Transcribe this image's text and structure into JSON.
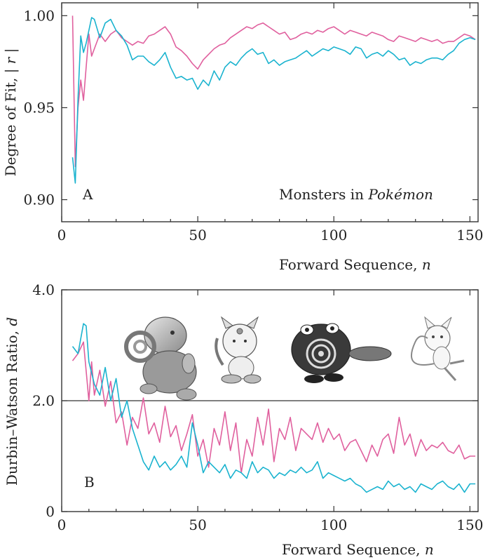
{
  "colors": {
    "series_pink": "#e0609e",
    "series_cyan": "#1ab3cf",
    "axis": "#333333"
  },
  "chart_data": [
    {
      "type": "line",
      "panel_label": "A",
      "annotation_prefix": "Monsters in ",
      "annotation_italic": "Pokémon",
      "xlabel_text": "Forward Sequence, ",
      "xlabel_var": "n",
      "ylabel_text": "Degree of Fit, ",
      "ylabel_var": "| r |",
      "xlim": [
        0,
        153
      ],
      "ylim": [
        0.888,
        1.007
      ],
      "xticks": [
        0,
        50,
        100,
        150
      ],
      "xtick_labels": [
        "0",
        "50",
        "100",
        "150"
      ],
      "yticks": [
        0.9,
        0.95,
        1.0
      ],
      "ytick_labels": [
        "0.90",
        "0.95",
        "1.00"
      ],
      "grid": false,
      "series": [
        {
          "color": "#e0609e",
          "x": [
            4,
            5,
            6,
            7,
            8,
            9,
            10,
            11,
            12,
            14,
            16,
            18,
            20,
            22,
            24,
            26,
            28,
            30,
            32,
            34,
            36,
            38,
            40,
            42,
            44,
            46,
            48,
            50,
            52,
            54,
            56,
            58,
            60,
            62,
            64,
            66,
            68,
            70,
            72,
            74,
            76,
            78,
            80,
            82,
            84,
            86,
            88,
            90,
            92,
            94,
            96,
            98,
            100,
            102,
            104,
            106,
            108,
            110,
            112,
            114,
            116,
            118,
            120,
            122,
            124,
            126,
            128,
            130,
            132,
            134,
            136,
            138,
            140,
            142,
            144,
            146,
            148,
            150,
            152
          ],
          "y": [
            1.0,
            0.918,
            0.95,
            0.965,
            0.954,
            0.972,
            0.99,
            0.978,
            0.982,
            0.99,
            0.986,
            0.99,
            0.992,
            0.988,
            0.986,
            0.984,
            0.986,
            0.985,
            0.989,
            0.99,
            0.992,
            0.994,
            0.99,
            0.983,
            0.981,
            0.978,
            0.974,
            0.971,
            0.976,
            0.979,
            0.982,
            0.984,
            0.985,
            0.988,
            0.99,
            0.992,
            0.994,
            0.993,
            0.995,
            0.996,
            0.994,
            0.992,
            0.99,
            0.991,
            0.987,
            0.988,
            0.99,
            0.991,
            0.99,
            0.992,
            0.991,
            0.993,
            0.994,
            0.992,
            0.99,
            0.992,
            0.991,
            0.99,
            0.989,
            0.991,
            0.99,
            0.989,
            0.987,
            0.986,
            0.989,
            0.988,
            0.987,
            0.986,
            0.988,
            0.987,
            0.986,
            0.987,
            0.985,
            0.986,
            0.986,
            0.988,
            0.99,
            0.989,
            0.987
          ]
        },
        {
          "color": "#1ab3cf",
          "x": [
            4,
            5,
            6,
            7,
            8,
            9,
            10,
            11,
            12,
            14,
            16,
            18,
            20,
            22,
            24,
            26,
            28,
            30,
            32,
            34,
            36,
            38,
            40,
            42,
            44,
            46,
            48,
            50,
            52,
            54,
            56,
            58,
            60,
            62,
            64,
            66,
            68,
            70,
            72,
            74,
            76,
            78,
            80,
            82,
            84,
            86,
            88,
            90,
            92,
            94,
            96,
            98,
            100,
            102,
            104,
            106,
            108,
            110,
            112,
            114,
            116,
            118,
            120,
            122,
            124,
            126,
            128,
            130,
            132,
            134,
            136,
            138,
            140,
            142,
            144,
            146,
            148,
            150,
            152
          ],
          "y": [
            0.923,
            0.909,
            0.955,
            0.989,
            0.98,
            0.985,
            0.992,
            0.999,
            0.998,
            0.988,
            0.996,
            0.998,
            0.992,
            0.989,
            0.984,
            0.976,
            0.978,
            0.978,
            0.975,
            0.973,
            0.976,
            0.98,
            0.972,
            0.966,
            0.967,
            0.965,
            0.966,
            0.96,
            0.965,
            0.962,
            0.97,
            0.965,
            0.972,
            0.975,
            0.973,
            0.977,
            0.98,
            0.982,
            0.979,
            0.98,
            0.974,
            0.976,
            0.973,
            0.975,
            0.976,
            0.977,
            0.979,
            0.981,
            0.978,
            0.98,
            0.982,
            0.981,
            0.983,
            0.982,
            0.981,
            0.979,
            0.983,
            0.982,
            0.977,
            0.979,
            0.98,
            0.978,
            0.981,
            0.979,
            0.976,
            0.977,
            0.973,
            0.975,
            0.974,
            0.976,
            0.977,
            0.977,
            0.976,
            0.979,
            0.981,
            0.985,
            0.987,
            0.988,
            0.987
          ]
        }
      ]
    },
    {
      "type": "line",
      "panel_label": "B",
      "xlabel_text": "Forward Sequence, ",
      "xlabel_var": "n",
      "ylabel_text": "Durbin–Watson Ratio, ",
      "ylabel_var": "d",
      "xlim": [
        0,
        153
      ],
      "ylim": [
        0,
        4.0
      ],
      "xticks": [
        0,
        50,
        100,
        150
      ],
      "xtick_labels": [
        "0",
        "50",
        "100",
        "150"
      ],
      "yticks": [
        0,
        2.0,
        4.0
      ],
      "ytick_labels": [
        "0",
        "2.0",
        "4.0"
      ],
      "reference_line_y": 2.0,
      "grid": false,
      "images": [
        "squirtle-illustration",
        "meowth-illustration",
        "poliwag-illustration",
        "mew-illustration"
      ],
      "series": [
        {
          "color": "#e0609e",
          "x": [
            4,
            6,
            8,
            10,
            11,
            12,
            14,
            16,
            18,
            20,
            22,
            24,
            26,
            28,
            30,
            32,
            34,
            36,
            38,
            40,
            42,
            44,
            46,
            48,
            50,
            52,
            54,
            56,
            58,
            60,
            62,
            64,
            66,
            68,
            70,
            72,
            74,
            76,
            78,
            80,
            82,
            84,
            86,
            88,
            90,
            92,
            94,
            96,
            98,
            100,
            102,
            104,
            106,
            108,
            110,
            112,
            114,
            116,
            118,
            120,
            122,
            124,
            126,
            128,
            130,
            132,
            134,
            136,
            138,
            140,
            142,
            144,
            146,
            148,
            150,
            152
          ],
          "y": [
            2.72,
            2.85,
            3.06,
            2.0,
            2.7,
            2.1,
            2.55,
            1.9,
            2.35,
            1.6,
            1.8,
            1.2,
            1.7,
            1.5,
            2.05,
            1.4,
            1.6,
            1.25,
            1.9,
            1.35,
            1.55,
            1.1,
            1.4,
            1.75,
            1.0,
            1.3,
            0.8,
            1.5,
            1.2,
            1.8,
            1.1,
            1.6,
            0.7,
            1.3,
            1.0,
            1.7,
            1.2,
            1.85,
            0.9,
            1.5,
            1.3,
            1.7,
            1.1,
            1.5,
            1.4,
            1.3,
            1.6,
            1.25,
            1.5,
            1.3,
            1.4,
            1.1,
            1.25,
            1.3,
            1.1,
            0.9,
            1.2,
            1.0,
            1.3,
            1.4,
            1.05,
            1.7,
            1.2,
            1.4,
            1.0,
            1.3,
            1.1,
            1.2,
            1.15,
            1.25,
            1.1,
            1.05,
            1.2,
            0.95,
            1.0,
            1.0
          ]
        },
        {
          "color": "#1ab3cf",
          "x": [
            4,
            6,
            8,
            9,
            10,
            11,
            12,
            14,
            16,
            18,
            20,
            22,
            24,
            26,
            28,
            30,
            32,
            34,
            36,
            38,
            40,
            42,
            44,
            46,
            48,
            50,
            52,
            54,
            56,
            58,
            60,
            62,
            64,
            66,
            68,
            70,
            72,
            74,
            76,
            78,
            80,
            82,
            84,
            86,
            88,
            90,
            92,
            94,
            96,
            98,
            100,
            102,
            104,
            106,
            108,
            110,
            112,
            114,
            116,
            118,
            120,
            122,
            124,
            126,
            128,
            130,
            132,
            134,
            136,
            138,
            140,
            142,
            144,
            146,
            148,
            150,
            152
          ],
          "y": [
            2.98,
            2.85,
            3.39,
            3.35,
            2.7,
            2.5,
            2.3,
            2.1,
            2.6,
            2.0,
            2.4,
            1.7,
            2.0,
            1.5,
            1.2,
            0.9,
            0.75,
            1.0,
            0.8,
            0.9,
            0.75,
            0.85,
            1.0,
            0.8,
            1.6,
            1.2,
            0.7,
            0.9,
            0.8,
            0.7,
            0.85,
            0.6,
            0.75,
            0.7,
            0.6,
            0.9,
            0.7,
            0.8,
            0.75,
            0.6,
            0.7,
            0.65,
            0.75,
            0.7,
            0.8,
            0.7,
            0.75,
            0.9,
            0.6,
            0.7,
            0.65,
            0.6,
            0.55,
            0.6,
            0.5,
            0.45,
            0.35,
            0.4,
            0.45,
            0.4,
            0.55,
            0.45,
            0.5,
            0.4,
            0.45,
            0.35,
            0.5,
            0.45,
            0.4,
            0.5,
            0.55,
            0.45,
            0.4,
            0.5,
            0.35,
            0.5,
            0.5
          ]
        }
      ]
    }
  ]
}
